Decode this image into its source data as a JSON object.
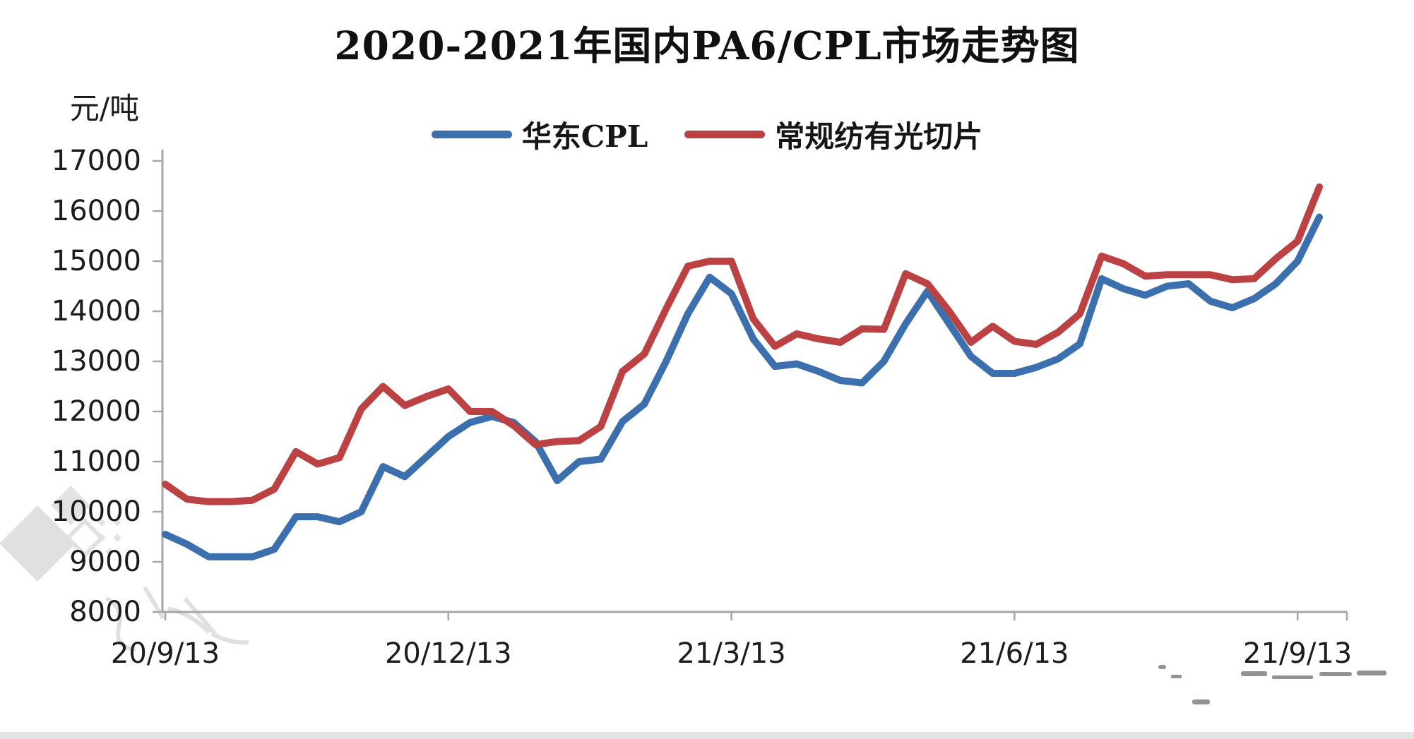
{
  "page": {
    "title": "2020-2021年国内PA6/CPL市场走势图",
    "unit_label": "元/吨"
  },
  "chart_data": {
    "type": "line",
    "title": "2020-2021年国内PA6/CPL市场走势图",
    "ylabel": "元/吨",
    "ylim": [
      8000,
      17000
    ],
    "yticks": [
      17000,
      16000,
      15000,
      14000,
      13000,
      12000,
      11000,
      10000,
      9000,
      8000
    ],
    "xtick_labels": [
      "20/9/13",
      "20/12/13",
      "21/3/13",
      "21/6/13",
      "21/9/13"
    ],
    "xtick_indexes": [
      0,
      13,
      26,
      39,
      52
    ],
    "x_unit": "week",
    "grid": false,
    "legend_position": "top",
    "axis_color": "#a6a6a6",
    "series": [
      {
        "name": "华东CPL",
        "color": "#3b6fae",
        "values": [
          9550,
          9350,
          9100,
          9100,
          9100,
          9250,
          9900,
          9900,
          9800,
          10000,
          10900,
          10700,
          11100,
          11500,
          11780,
          11900,
          11780,
          11400,
          10620,
          11000,
          11050,
          11800,
          12150,
          13000,
          13950,
          14680,
          14350,
          13450,
          12900,
          12950,
          12800,
          12620,
          12570,
          13000,
          13750,
          14400,
          13750,
          13100,
          12760,
          12760,
          12880,
          13050,
          13350,
          14650,
          14450,
          14320,
          14500,
          14550,
          14200,
          14070,
          14250,
          14550,
          15000,
          15880
        ]
      },
      {
        "name": "常规纺有光切片",
        "color": "#bb4143",
        "values": [
          10550,
          10250,
          10200,
          10200,
          10230,
          10450,
          11200,
          10950,
          11080,
          12050,
          12500,
          12120,
          12300,
          12450,
          12000,
          12000,
          11720,
          11340,
          11400,
          11420,
          11700,
          12800,
          13150,
          14050,
          14900,
          15000,
          15000,
          13850,
          13300,
          13550,
          13450,
          13380,
          13650,
          13640,
          14750,
          14550,
          14000,
          13380,
          13700,
          13400,
          13340,
          13580,
          13950,
          15100,
          14950,
          14700,
          14730,
          14730,
          14730,
          14630,
          14650,
          15050,
          15400,
          16480
        ]
      }
    ]
  }
}
